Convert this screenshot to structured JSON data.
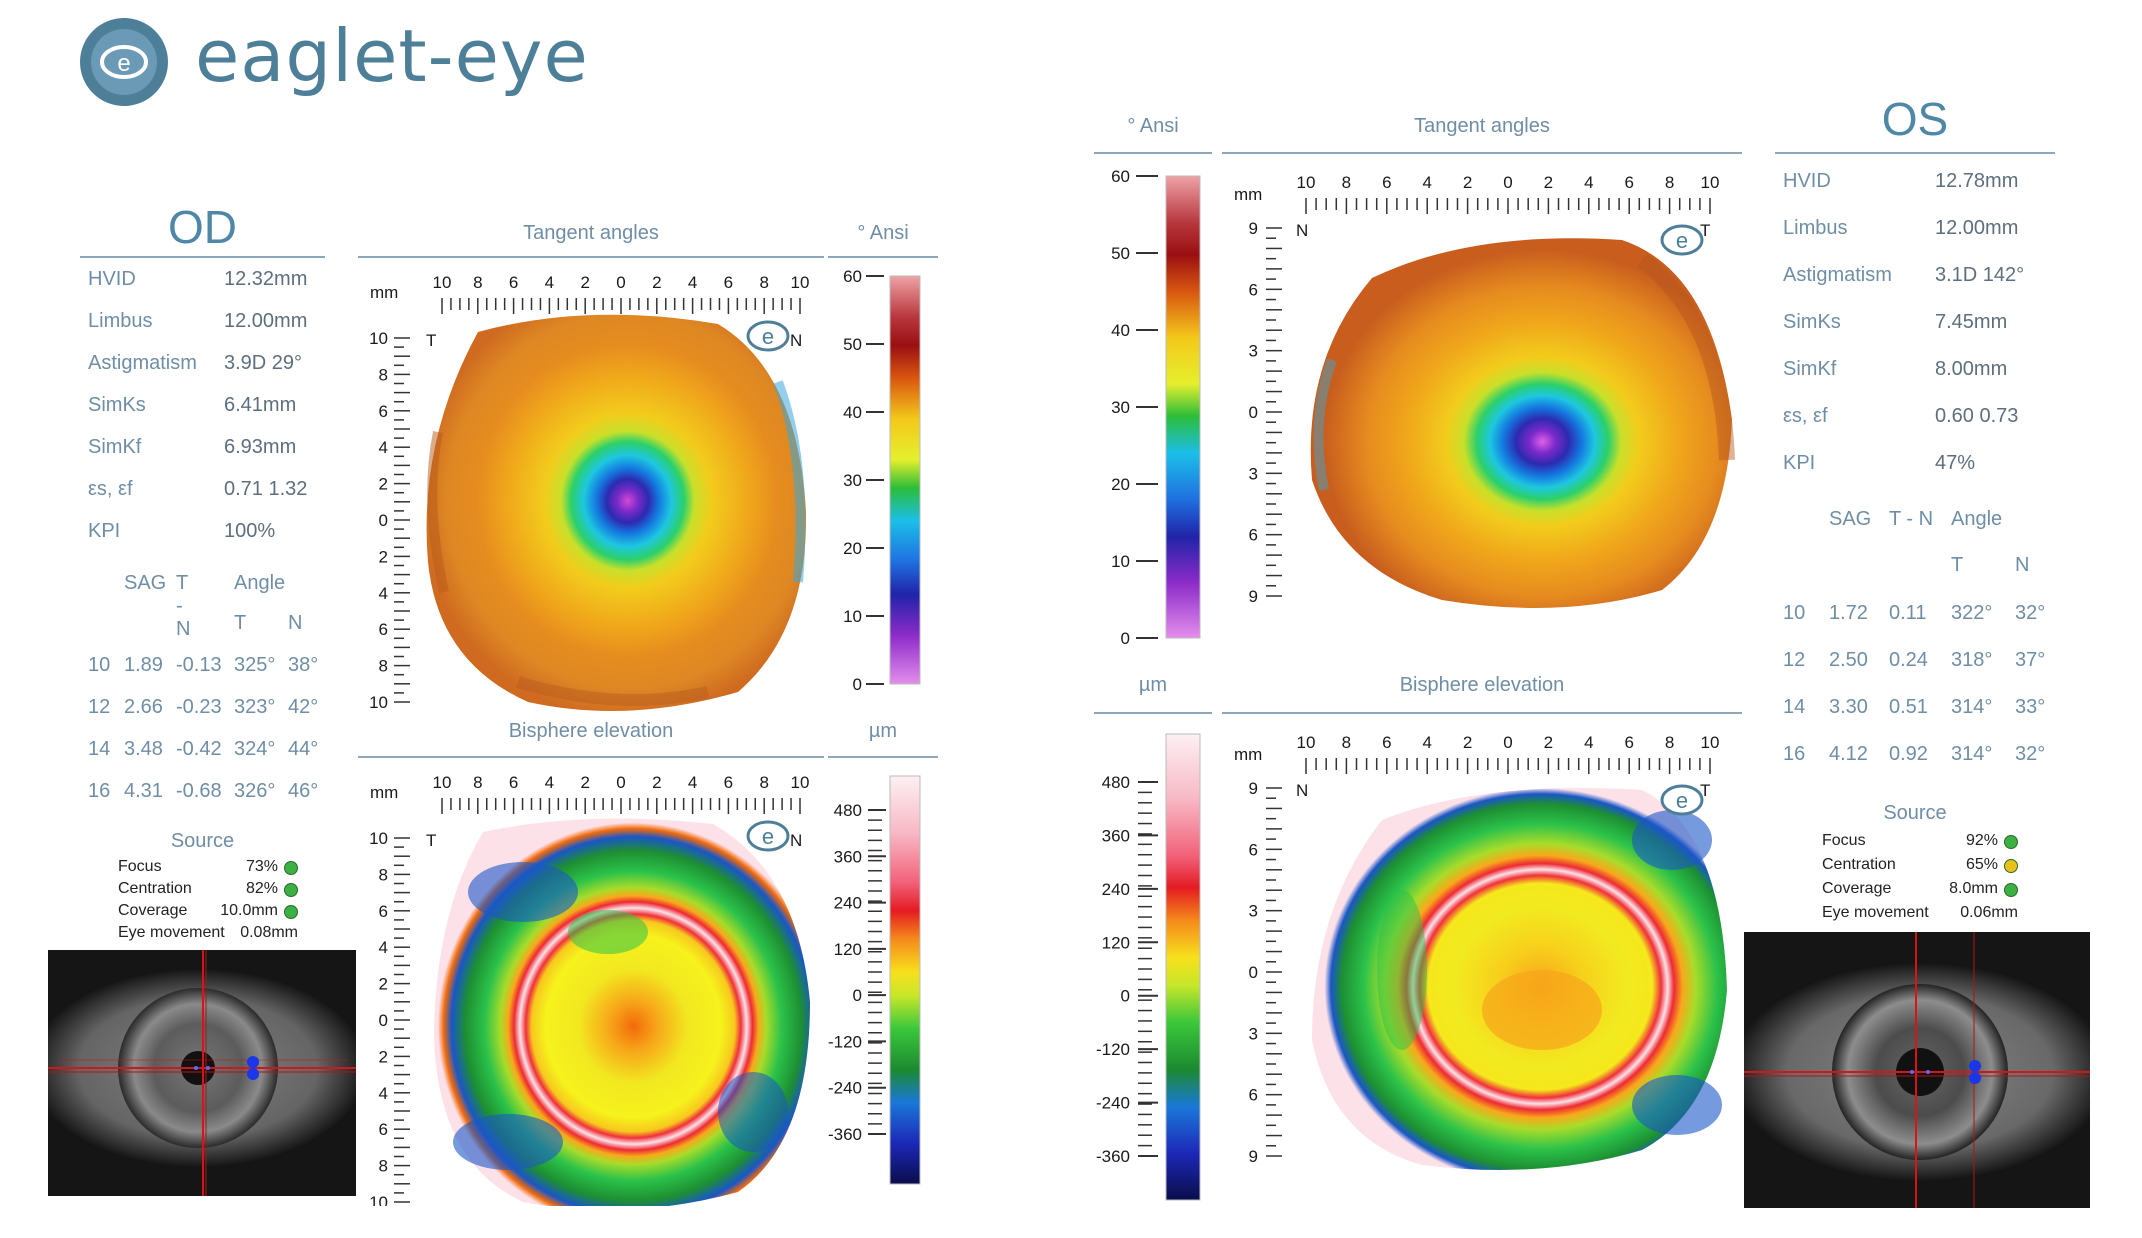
{
  "brand": {
    "name": "eaglet-eye",
    "logo_letter": "e"
  },
  "od": {
    "title": "OD",
    "stats": [
      {
        "label": "HVID",
        "value": "12.32mm"
      },
      {
        "label": "Limbus",
        "value": "12.00mm"
      },
      {
        "label": "Astigmatism",
        "value": "3.9D 29°"
      },
      {
        "label": "SimKs",
        "value": "6.41mm"
      },
      {
        "label": "SimKf",
        "value": "6.93mm"
      },
      {
        "label": "εs, εf",
        "value": "0.71 1.32"
      },
      {
        "label": "KPI",
        "value": "100%"
      }
    ],
    "sag_header": {
      "sag": "SAG",
      "tn": "T - N",
      "angle": "Angle",
      "t": "T",
      "n": "N"
    },
    "sag_rows": [
      [
        "10",
        "1.89",
        "-0.13",
        "325°",
        "38°"
      ],
      [
        "12",
        "2.66",
        "-0.23",
        "323°",
        "42°"
      ],
      [
        "14",
        "3.48",
        "-0.42",
        "324°",
        "44°"
      ],
      [
        "16",
        "4.31",
        "-0.68",
        "326°",
        "46°"
      ]
    ],
    "source": {
      "title": "Source",
      "rows": [
        {
          "label": "Focus",
          "value": "73%",
          "status": "#3cb043"
        },
        {
          "label": "Centration",
          "value": "82%",
          "status": "#3cb043"
        },
        {
          "label": "Coverage",
          "value": "10.0mm",
          "status": "#3cb043"
        },
        {
          "label": "Eye movement",
          "value": "0.08mm",
          "status": ""
        }
      ]
    },
    "tangent": {
      "title": "Tangent angles",
      "unit_label": "mm",
      "side_left": "T",
      "side_right": "N"
    },
    "elevation": {
      "title": "Bisphere elevation",
      "unit_label": "mm",
      "side_left": "T",
      "side_right": "N"
    },
    "x_ticks": [
      "10",
      "8",
      "6",
      "4",
      "2",
      "0",
      "2",
      "4",
      "6",
      "8",
      "10"
    ],
    "y_ticks": [
      "10",
      "8",
      "6",
      "4",
      "2",
      "0",
      "2",
      "4",
      "6",
      "8",
      "10"
    ]
  },
  "os": {
    "title": "OS",
    "stats": [
      {
        "label": "HVID",
        "value": "12.78mm"
      },
      {
        "label": "Limbus",
        "value": "12.00mm"
      },
      {
        "label": "Astigmatism",
        "value": "3.1D 142°"
      },
      {
        "label": "SimKs",
        "value": "7.45mm"
      },
      {
        "label": "SimKf",
        "value": "8.00mm"
      },
      {
        "label": "εs, εf",
        "value": "0.60 0.73"
      },
      {
        "label": "KPI",
        "value": "47%"
      }
    ],
    "sag_header": {
      "sag": "SAG",
      "tn": "T - N",
      "angle": "Angle",
      "t": "T",
      "n": "N"
    },
    "sag_rows": [
      [
        "10",
        "1.72",
        "0.11",
        "322°",
        "32°"
      ],
      [
        "12",
        "2.50",
        "0.24",
        "318°",
        "37°"
      ],
      [
        "14",
        "3.30",
        "0.51",
        "314°",
        "33°"
      ],
      [
        "16",
        "4.12",
        "0.92",
        "314°",
        "32°"
      ]
    ],
    "source": {
      "title": "Source",
      "rows": [
        {
          "label": "Focus",
          "value": "92%",
          "status": "#3cb043"
        },
        {
          "label": "Centration",
          "value": "65%",
          "status": "#e8c21a"
        },
        {
          "label": "Coverage",
          "value": "8.0mm",
          "status": "#3cb043"
        },
        {
          "label": "Eye movement",
          "value": "0.06mm",
          "status": ""
        }
      ]
    },
    "tangent": {
      "title": "Tangent angles",
      "unit_label": "mm",
      "side_left": "N",
      "side_right": "T"
    },
    "elevation": {
      "title": "Bisphere elevation",
      "unit_label": "mm",
      "side_left": "N",
      "side_right": "T"
    },
    "x_ticks": [
      "10",
      "8",
      "6",
      "4",
      "2",
      "0",
      "2",
      "4",
      "6",
      "8",
      "10"
    ],
    "y_ticks": [
      "9",
      "6",
      "3",
      "0",
      "3",
      "6",
      "9"
    ]
  },
  "scales": {
    "ansi": {
      "unit": "° Ansi",
      "od_ticks": [
        "60",
        "50",
        "40",
        "30",
        "20",
        "10",
        "0"
      ],
      "os_ticks": [
        "60",
        "50",
        "40",
        "30",
        "20",
        "10",
        "0"
      ]
    },
    "elev": {
      "unit": "µm",
      "od_ticks": [
        "480",
        "360",
        "240",
        "120",
        "0",
        "-120",
        "-240",
        "-360"
      ],
      "os_ticks": [
        "480",
        "360",
        "240",
        "120",
        "0",
        "-120",
        "-240",
        "-360"
      ]
    }
  },
  "colors": {
    "accent": "#4f87a7",
    "rule": "#8ea8bb",
    "status_green": "#3cb043",
    "status_yellow": "#e8c21a"
  }
}
